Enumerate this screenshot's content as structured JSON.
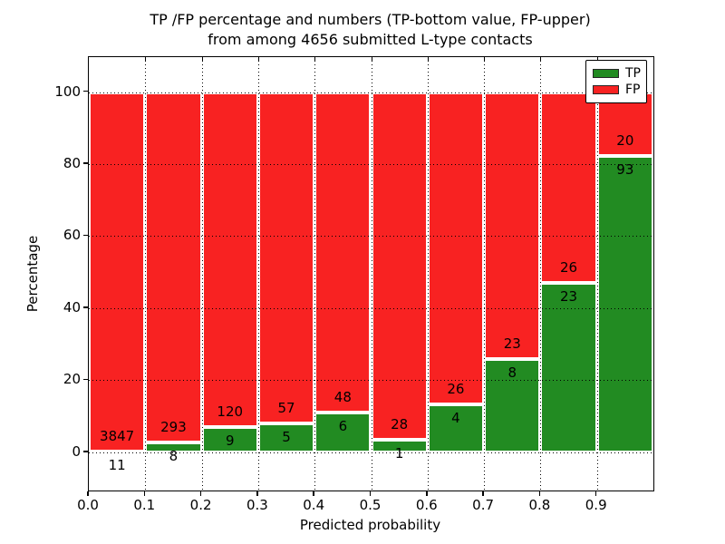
{
  "title": {
    "line1": "TP /FP percentage and numbers (TP-bottom value, FP-upper)",
    "line2": "from among 4656 submitted L-type contacts"
  },
  "axes": {
    "xlabel": "Predicted probability",
    "ylabel": "Percentage",
    "x_tick_labels": [
      "0.0",
      "0.1",
      "0.2",
      "0.3",
      "0.4",
      "0.5",
      "0.6",
      "0.7",
      "0.8",
      "0.9"
    ],
    "y_tick_labels": [
      "0",
      "20",
      "40",
      "60",
      "80",
      "100"
    ]
  },
  "legend": {
    "position": "upper right",
    "entries": [
      {
        "label": "TP",
        "color": "#228b22"
      },
      {
        "label": "FP",
        "color": "#f82222"
      }
    ]
  },
  "chart_data": {
    "type": "bar",
    "stacked": true,
    "normalized_to_percent": true,
    "title": "TP /FP percentage and numbers (TP-bottom value, FP-upper) from among 4656 submitted L-type contacts",
    "xlabel": "Predicted probability",
    "ylabel": "Percentage",
    "total_contacts": 4656,
    "bin_left_edges": [
      0.0,
      0.1,
      0.2,
      0.3,
      0.4,
      0.5,
      0.6,
      0.7,
      0.8,
      0.9
    ],
    "bin_width": 0.1,
    "series": [
      {
        "name": "TP",
        "color": "#228b22",
        "counts": [
          11,
          8,
          9,
          5,
          6,
          1,
          4,
          8,
          23,
          93
        ]
      },
      {
        "name": "FP",
        "color": "#f82222",
        "counts": [
          3847,
          293,
          120,
          57,
          48,
          28,
          26,
          23,
          26,
          20
        ]
      }
    ],
    "tp_percent_of_bin": [
      0.29,
      2.66,
      6.98,
      8.06,
      11.11,
      3.45,
      13.33,
      25.81,
      46.94,
      82.3
    ],
    "xlim": [
      0.0,
      1.0
    ],
    "ylim": [
      -10.6,
      109.7
    ],
    "x_ticks": [
      0.0,
      0.1,
      0.2,
      0.3,
      0.4,
      0.5,
      0.6,
      0.7,
      0.8,
      0.9
    ],
    "y_ticks": [
      0,
      20,
      40,
      60,
      80,
      100
    ],
    "grid": "dotted both axes",
    "legend_position": "upper right",
    "annotation_note": "TP count printed below segment boundary, FP count printed above segment boundary"
  }
}
